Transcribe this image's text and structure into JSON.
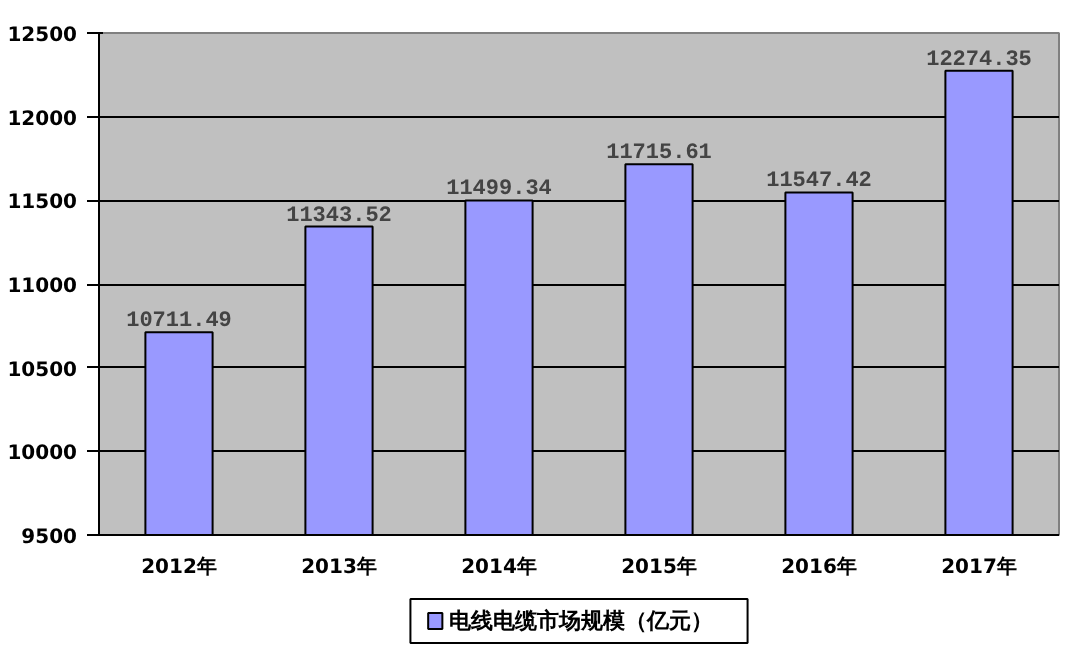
{
  "chart_data": {
    "type": "bar",
    "categories": [
      "2012年",
      "2013年",
      "2014年",
      "2015年",
      "2016年",
      "2017年"
    ],
    "series": [
      {
        "name": "电线电缆市场规模（亿元）",
        "color": "#9999ff",
        "values": [
          10711.49,
          11343.52,
          11499.34,
          11715.61,
          11547.42,
          12274.35
        ]
      }
    ],
    "ylim": [
      9500,
      12500
    ],
    "yticks": [
      9500,
      10000,
      10500,
      11000,
      11500,
      12000,
      12500
    ],
    "grid": "y",
    "legend": "bottom",
    "data_labels": true
  }
}
